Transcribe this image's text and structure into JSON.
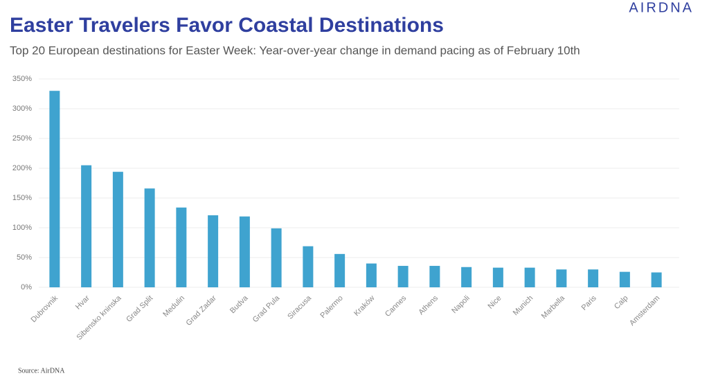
{
  "logo": "AIRDNA",
  "source": "Source: AirDNA",
  "chart_data": {
    "type": "bar",
    "title": "Easter Travelers Favor Coastal Destinations",
    "subtitle": "Top 20 European destinations for Easter Week: Year-over-year change in demand pacing as of February 10th",
    "categories": [
      "Dubrovnik",
      "Hvar",
      "Sibensko kninska",
      "Grad Split",
      "Medulin",
      "Grad Zadar",
      "Budva",
      "Grad Pula",
      "Siracusa",
      "Palermo",
      "Kraków",
      "Cannes",
      "Athens",
      "Napoli",
      "Nice",
      "Munich",
      "Marbella",
      "Paris",
      "Calp",
      "Amsterdam"
    ],
    "values": [
      330,
      205,
      194,
      166,
      134,
      121,
      119,
      99,
      69,
      56,
      40,
      36,
      36,
      34,
      33,
      33,
      30,
      30,
      26,
      25
    ],
    "color": "#3fa3cf",
    "ylim": [
      0,
      350
    ],
    "yticks": [
      {
        "value": 0,
        "label": "0%"
      },
      {
        "value": 50,
        "label": "50%"
      },
      {
        "value": 100,
        "label": "100%"
      },
      {
        "value": 150,
        "label": "150%"
      },
      {
        "value": 200,
        "label": "200%"
      },
      {
        "value": 250,
        "label": "250%"
      },
      {
        "value": 300,
        "label": "300%"
      },
      {
        "value": 350,
        "label": "350%"
      }
    ],
    "grid": true
  }
}
